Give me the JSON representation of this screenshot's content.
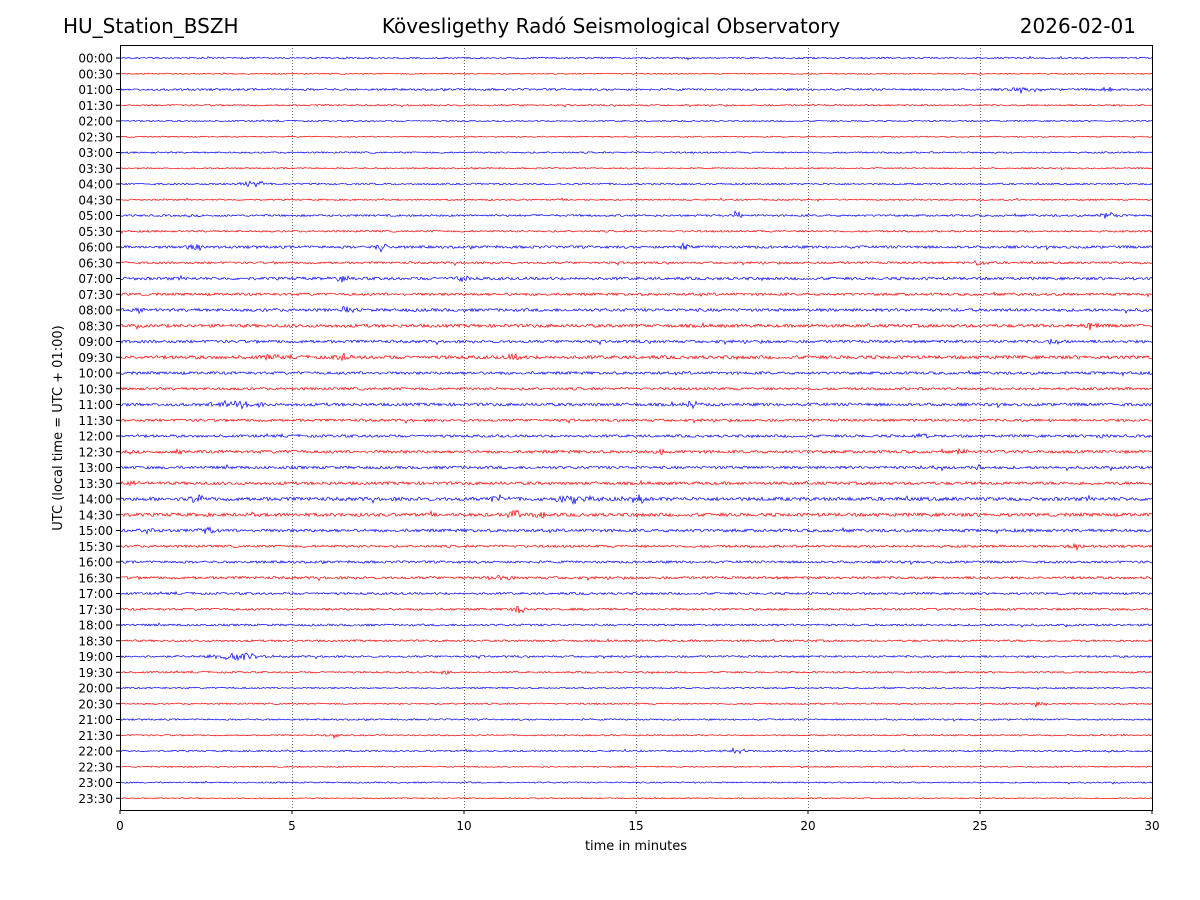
{
  "header": {
    "station": "HU_Station_BSZH",
    "title": "Kövesligethy Radó Seismological Observatory",
    "date": "2026-02-01"
  },
  "chart_data": {
    "type": "line",
    "title": "Kövesligethy Radó Seismological Observatory",
    "xlabel": "time in minutes",
    "ylabel": "UTC (local time = UTC + 01:00)",
    "xlim": [
      0,
      30
    ],
    "xticks": [
      0,
      5,
      10,
      15,
      20,
      25,
      30
    ],
    "grid": "vertical dotted at 5-minute intervals",
    "trace_colors": [
      "#0000ff",
      "#ff0000"
    ],
    "rows": [
      "00:00",
      "00:30",
      "01:00",
      "01:30",
      "02:00",
      "02:30",
      "03:00",
      "03:30",
      "04:00",
      "04:30",
      "05:00",
      "05:30",
      "06:00",
      "06:30",
      "07:00",
      "07:30",
      "08:00",
      "08:30",
      "09:00",
      "09:30",
      "10:00",
      "10:30",
      "11:00",
      "11:30",
      "12:00",
      "12:30",
      "13:00",
      "13:30",
      "14:00",
      "14:30",
      "15:00",
      "15:30",
      "16:00",
      "16:30",
      "17:00",
      "17:30",
      "18:00",
      "18:30",
      "19:00",
      "19:30",
      "20:00",
      "20:30",
      "21:00",
      "21:30",
      "22:00",
      "22:30",
      "23:00",
      "23:30"
    ],
    "noise": [
      0.8,
      0.6,
      1.0,
      0.8,
      0.7,
      0.6,
      0.8,
      0.7,
      0.9,
      0.8,
      1.0,
      0.9,
      1.3,
      1.1,
      1.4,
      1.3,
      1.5,
      1.6,
      1.4,
      1.7,
      1.4,
      1.3,
      1.5,
      1.3,
      1.3,
      1.5,
      1.4,
      1.5,
      1.8,
      1.7,
      1.5,
      1.2,
      1.2,
      1.3,
      1.1,
      1.1,
      1.0,
      1.0,
      1.0,
      0.9,
      0.8,
      0.8,
      0.8,
      0.7,
      0.8,
      0.7,
      0.7,
      0.6
    ],
    "events": [
      {
        "row": "01:00",
        "minute": 26.3,
        "amplitude": 2.5,
        "duration": 1.2
      },
      {
        "row": "01:00",
        "minute": 28.7,
        "amplitude": 2.5,
        "duration": 0.4
      },
      {
        "row": "04:00",
        "minute": 3.9,
        "amplitude": 3.5,
        "duration": 1.0
      },
      {
        "row": "05:00",
        "minute": 17.9,
        "amplitude": 4,
        "duration": 0.3
      },
      {
        "row": "05:00",
        "minute": 28.7,
        "amplitude": 3.5,
        "duration": 0.5
      },
      {
        "row": "06:00",
        "minute": 2.2,
        "amplitude": 3.5,
        "duration": 0.5
      },
      {
        "row": "06:00",
        "minute": 7.6,
        "amplitude": 4,
        "duration": 0.3
      },
      {
        "row": "06:00",
        "minute": 16.4,
        "amplitude": 3,
        "duration": 0.4
      },
      {
        "row": "06:30",
        "minute": 25.0,
        "amplitude": 3,
        "duration": 0.5
      },
      {
        "row": "07:00",
        "minute": 6.4,
        "amplitude": 3,
        "duration": 0.5
      },
      {
        "row": "07:00",
        "minute": 9.9,
        "amplitude": 3,
        "duration": 0.4
      },
      {
        "row": "08:00",
        "minute": 0.7,
        "amplitude": 3,
        "duration": 0.4
      },
      {
        "row": "08:00",
        "minute": 6.6,
        "amplitude": 3.5,
        "duration": 0.4
      },
      {
        "row": "08:30",
        "minute": 15.1,
        "amplitude": 3.5,
        "duration": 0.2
      },
      {
        "row": "08:30",
        "minute": 28.2,
        "amplitude": 3.5,
        "duration": 0.5
      },
      {
        "row": "09:00",
        "minute": 27.2,
        "amplitude": 3,
        "duration": 0.4
      },
      {
        "row": "09:30",
        "minute": 4.4,
        "amplitude": 4,
        "duration": 0.3
      },
      {
        "row": "09:30",
        "minute": 6.5,
        "amplitude": 4,
        "duration": 0.5
      },
      {
        "row": "09:30",
        "minute": 11.5,
        "amplitude": 4,
        "duration": 0.3
      },
      {
        "row": "11:00",
        "minute": 3.4,
        "amplitude": 3.5,
        "duration": 2.0
      },
      {
        "row": "11:00",
        "minute": 16.6,
        "amplitude": 3.5,
        "duration": 0.5
      },
      {
        "row": "12:00",
        "minute": 23.3,
        "amplitude": 3.5,
        "duration": 0.2
      },
      {
        "row": "12:00",
        "minute": 28.6,
        "amplitude": 2.5,
        "duration": 0.2
      },
      {
        "row": "12:30",
        "minute": 1.6,
        "amplitude": 3,
        "duration": 0.3
      },
      {
        "row": "12:30",
        "minute": 15.8,
        "amplitude": 3.5,
        "duration": 0.5
      },
      {
        "row": "12:30",
        "minute": 24.5,
        "amplitude": 3,
        "duration": 0.2
      },
      {
        "row": "13:00",
        "minute": 23.8,
        "amplitude": 3,
        "duration": 0.3
      },
      {
        "row": "13:00",
        "minute": 25.0,
        "amplitude": 3,
        "duration": 0.4
      },
      {
        "row": "13:30",
        "minute": 0.4,
        "amplitude": 3,
        "duration": 0.4
      },
      {
        "row": "14:00",
        "minute": 2.3,
        "amplitude": 3.5,
        "duration": 0.6
      },
      {
        "row": "14:00",
        "minute": 11.0,
        "amplitude": 3.5,
        "duration": 0.6
      },
      {
        "row": "14:00",
        "minute": 13.3,
        "amplitude": 4,
        "duration": 1.5
      },
      {
        "row": "14:00",
        "minute": 15.1,
        "amplitude": 4.5,
        "duration": 0.3
      },
      {
        "row": "14:30",
        "minute": 11.4,
        "amplitude": 6,
        "duration": 0.4
      },
      {
        "row": "14:30",
        "minute": 12.3,
        "amplitude": 3,
        "duration": 0.5
      },
      {
        "row": "15:00",
        "minute": 0.7,
        "amplitude": 4,
        "duration": 0.5
      },
      {
        "row": "15:00",
        "minute": 2.5,
        "amplitude": 3,
        "duration": 0.4
      },
      {
        "row": "15:30",
        "minute": 27.8,
        "amplitude": 3,
        "duration": 0.5
      },
      {
        "row": "16:30",
        "minute": 11.0,
        "amplitude": 2.5,
        "duration": 0.8
      },
      {
        "row": "17:30",
        "minute": 11.6,
        "amplitude": 4,
        "duration": 0.4
      },
      {
        "row": "19:00",
        "minute": 3.4,
        "amplitude": 3.5,
        "duration": 2.0
      },
      {
        "row": "19:30",
        "minute": 9.4,
        "amplitude": 2.5,
        "duration": 0.3
      },
      {
        "row": "20:30",
        "minute": 26.7,
        "amplitude": 2.5,
        "duration": 0.4
      },
      {
        "row": "21:30",
        "minute": 6.2,
        "amplitude": 3,
        "duration": 0.3
      },
      {
        "row": "22:00",
        "minute": 17.9,
        "amplitude": 2.5,
        "duration": 0.7
      }
    ]
  }
}
